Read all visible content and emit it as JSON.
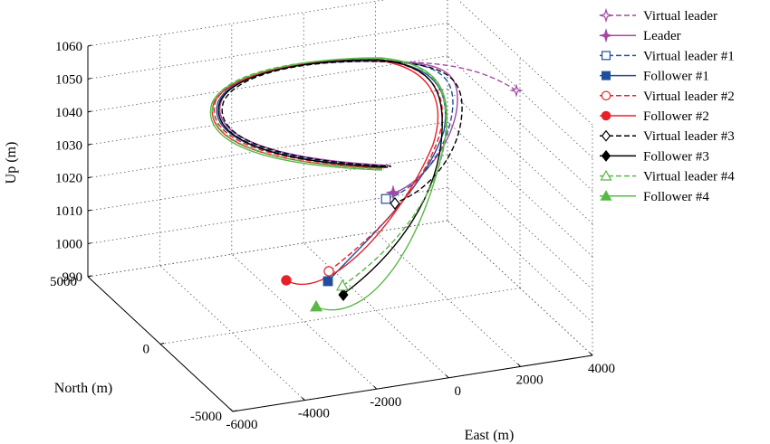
{
  "chart_data": {
    "type": "line3d",
    "title": "",
    "xlabel": "East (m)",
    "ylabel": "North (m)",
    "zlabel": "Up (m)",
    "xlim": [
      -6000,
      4000
    ],
    "ylim": [
      -5000,
      5000
    ],
    "zlim": [
      990,
      1060
    ],
    "x_ticks": [
      "-6000",
      "-4000",
      "-2000",
      "0",
      "2000",
      "4000"
    ],
    "y_ticks": [
      "-5000",
      "0",
      "5000"
    ],
    "z_ticks": [
      "990",
      "1000",
      "1010",
      "1020",
      "1030",
      "1040",
      "1050",
      "1060"
    ],
    "grid": true,
    "legend_position": "top-right",
    "series": [
      {
        "name": "Virtual leader",
        "color": "#a349a4",
        "dash": "dashed",
        "marker": "star-open"
      },
      {
        "name": "Leader",
        "color": "#a349a4",
        "dash": "solid",
        "marker": "star-filled"
      },
      {
        "name": "Virtual leader #1",
        "color": "#1f4e9c",
        "dash": "dashed",
        "marker": "square-open"
      },
      {
        "name": "Follower #1",
        "color": "#1f4e9c",
        "dash": "solid",
        "marker": "square-filled"
      },
      {
        "name": "Virtual leader #2",
        "color": "#e8202a",
        "dash": "dashed",
        "marker": "circle-open"
      },
      {
        "name": "Follower #2",
        "color": "#e8202a",
        "dash": "solid",
        "marker": "circle-filled"
      },
      {
        "name": "Virtual leader #3",
        "color": "#000000",
        "dash": "dashed",
        "marker": "diamond-open"
      },
      {
        "name": "Follower #3",
        "color": "#000000",
        "dash": "solid",
        "marker": "diamond-filled"
      },
      {
        "name": "Virtual leader #4",
        "color": "#59b847",
        "dash": "dashed",
        "marker": "triangle-open"
      },
      {
        "name": "Follower #4",
        "color": "#59b847",
        "dash": "solid",
        "marker": "triangle-filled"
      }
    ]
  }
}
